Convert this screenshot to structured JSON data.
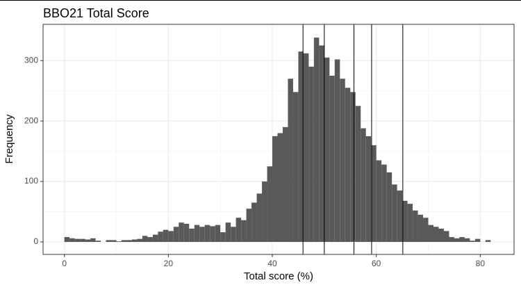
{
  "chart_data": {
    "type": "histogram",
    "title": "BBO21 Total Score",
    "xlabel": "Total score (%)",
    "ylabel": "Frequency",
    "bins": [
      0,
      1,
      2,
      3,
      4,
      5,
      6,
      7,
      8,
      9,
      10,
      11,
      12,
      13,
      14,
      15,
      16,
      17,
      18,
      19,
      20,
      21,
      22,
      23,
      24,
      25,
      26,
      27,
      28,
      29,
      30,
      31,
      32,
      33,
      34,
      35,
      36,
      37,
      38,
      39,
      40,
      41,
      42,
      43,
      44,
      45,
      46,
      47,
      48,
      49,
      50,
      51,
      52,
      53,
      54,
      55,
      56,
      57,
      58,
      59,
      60,
      61,
      62,
      63,
      64,
      65,
      66,
      67,
      68,
      69,
      70,
      71,
      72,
      73,
      74,
      75,
      76,
      77,
      78,
      79,
      80,
      81,
      82,
      83
    ],
    "values": [
      8,
      6,
      5,
      5,
      4,
      6,
      2,
      0,
      3,
      3,
      1,
      3,
      3,
      4,
      5,
      10,
      8,
      12,
      17,
      20,
      18,
      25,
      32,
      30,
      22,
      28,
      25,
      28,
      26,
      28,
      16,
      32,
      25,
      40,
      36,
      55,
      65,
      80,
      100,
      125,
      175,
      180,
      190,
      270,
      248,
      315,
      312,
      290,
      338,
      325,
      305,
      275,
      302,
      270,
      255,
      248,
      225,
      188,
      175,
      160,
      135,
      128,
      115,
      95,
      85,
      68,
      63,
      52,
      45,
      40,
      28,
      25,
      22,
      18,
      8,
      6,
      8,
      6,
      2,
      5,
      0,
      3,
      0
    ],
    "color": "#595959",
    "vlines": [
      45.9,
      50.0,
      55.7,
      59.1,
      65.1
    ],
    "vline_color": "#000000",
    "xlim": [
      -4.1,
      86.5
    ],
    "ylim": [
      -20.7,
      360
    ],
    "xticks": [
      0,
      20,
      40,
      60,
      80
    ],
    "yticks": [
      0,
      100,
      200,
      300
    ],
    "x_minor_ticks": [
      10,
      30,
      50,
      70
    ],
    "y_minor_ticks": [
      50,
      150,
      250
    ],
    "grid": true
  }
}
